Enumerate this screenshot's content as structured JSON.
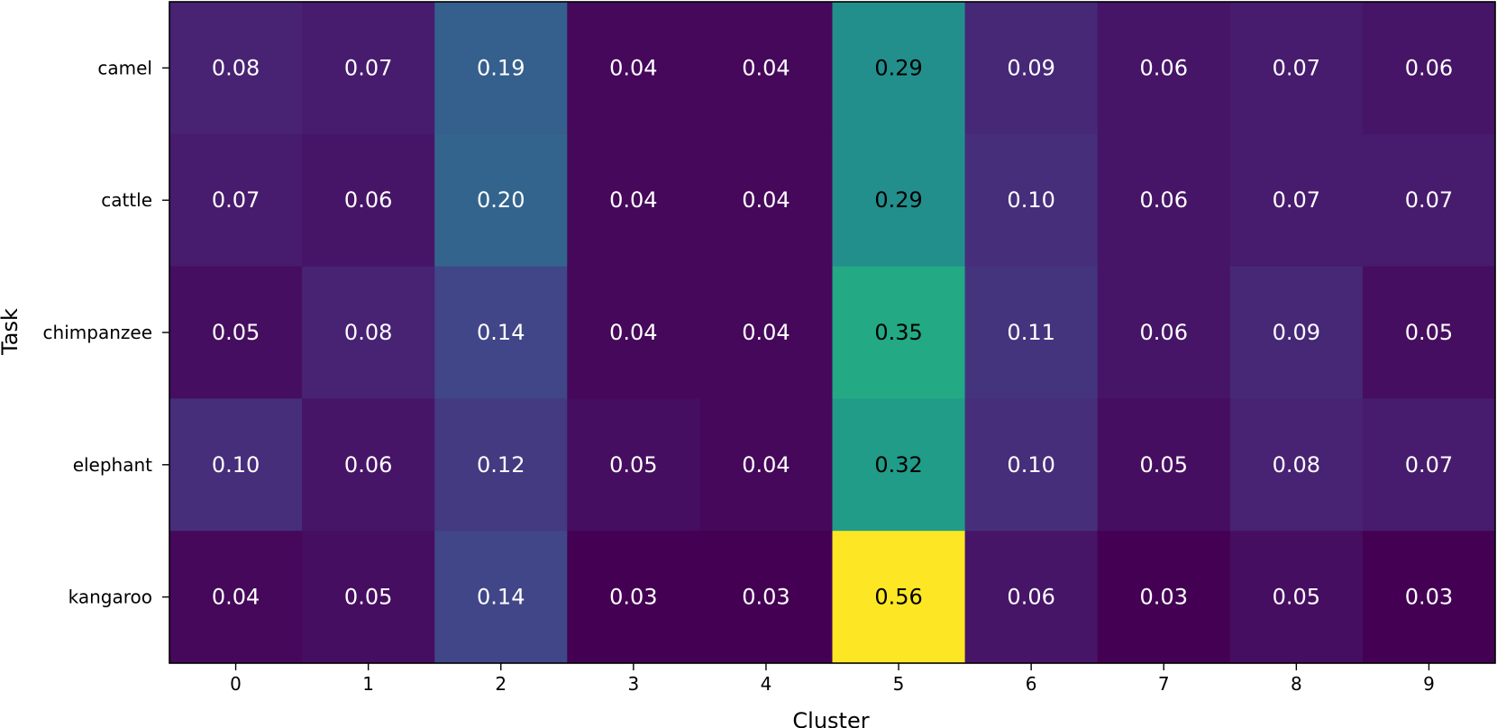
{
  "chart_data": {
    "type": "heatmap",
    "xlabel": "Cluster",
    "ylabel": "Task",
    "x_categories": [
      "0",
      "1",
      "2",
      "3",
      "4",
      "5",
      "6",
      "7",
      "8",
      "9"
    ],
    "y_categories": [
      "camel",
      "cattle",
      "chimpanzee",
      "elephant",
      "kangaroo"
    ],
    "values": [
      [
        0.08,
        0.07,
        0.19,
        0.04,
        0.04,
        0.29,
        0.09,
        0.06,
        0.07,
        0.06
      ],
      [
        0.07,
        0.06,
        0.2,
        0.04,
        0.04,
        0.29,
        0.1,
        0.06,
        0.07,
        0.07
      ],
      [
        0.05,
        0.08,
        0.14,
        0.04,
        0.04,
        0.35,
        0.11,
        0.06,
        0.09,
        0.05
      ],
      [
        0.1,
        0.06,
        0.12,
        0.05,
        0.04,
        0.32,
        0.1,
        0.05,
        0.08,
        0.07
      ],
      [
        0.04,
        0.05,
        0.14,
        0.03,
        0.03,
        0.56,
        0.06,
        0.03,
        0.05,
        0.03
      ]
    ],
    "value_labels": [
      [
        "0.08",
        "0.07",
        "0.19",
        "0.04",
        "0.04",
        "0.29",
        "0.09",
        "0.06",
        "0.07",
        "0.06"
      ],
      [
        "0.07",
        "0.06",
        "0.20",
        "0.04",
        "0.04",
        "0.29",
        "0.10",
        "0.06",
        "0.07",
        "0.07"
      ],
      [
        "0.05",
        "0.08",
        "0.14",
        "0.04",
        "0.04",
        "0.35",
        "0.11",
        "0.06",
        "0.09",
        "0.05"
      ],
      [
        "0.10",
        "0.06",
        "0.12",
        "0.05",
        "0.04",
        "0.32",
        "0.10",
        "0.05",
        "0.08",
        "0.07"
      ],
      [
        "0.04",
        "0.05",
        "0.14",
        "0.03",
        "0.03",
        "0.56",
        "0.06",
        "0.03",
        "0.05",
        "0.03"
      ]
    ],
    "colormap": "viridis",
    "value_range": [
      0.03,
      0.56
    ],
    "colorbar": false,
    "grid": false
  }
}
